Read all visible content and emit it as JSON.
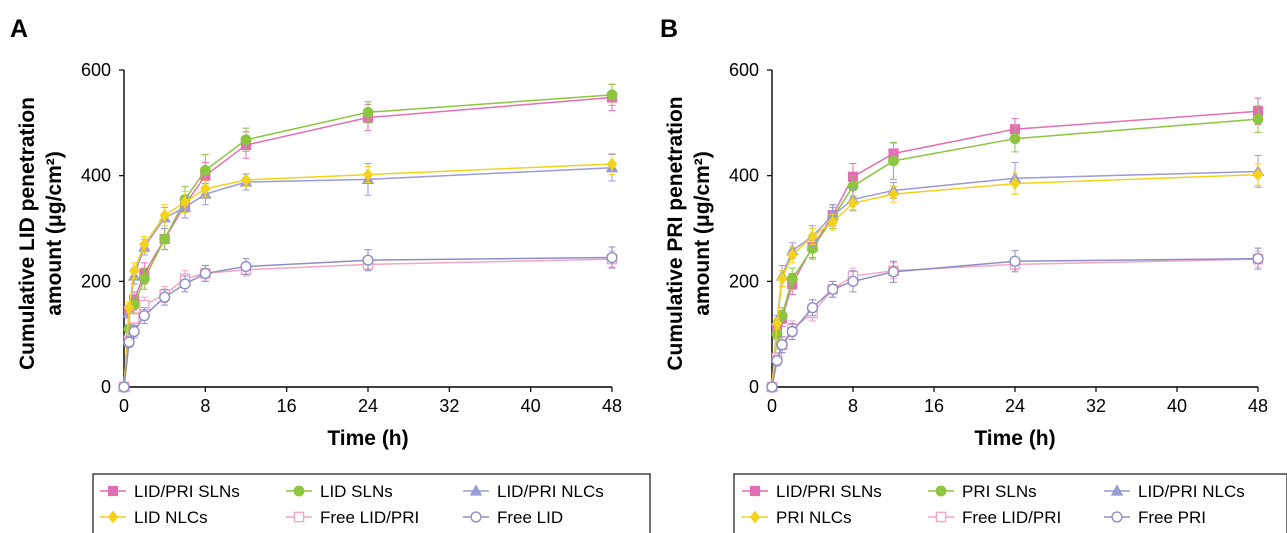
{
  "chart_data": [
    {
      "type": "line",
      "panel": "A",
      "xlabel": "Time (h)",
      "ylabel_line1": "Cumulative LID penetration",
      "ylabel_line2": "amount (μg/cm²)",
      "xlim": [
        0,
        48
      ],
      "ylim": [
        0,
        600
      ],
      "xticks": [
        0,
        8,
        16,
        24,
        32,
        40,
        48
      ],
      "yticks": [
        0,
        200,
        400,
        600
      ],
      "x": [
        0,
        0.5,
        1,
        2,
        4,
        6,
        8,
        12,
        24,
        48
      ],
      "grid": false,
      "legend_position": "bottom",
      "series": [
        {
          "name": "LID/PRI SLNs",
          "color": "#e26fb5",
          "marker": "square-filled",
          "values": [
            0,
            145,
            165,
            215,
            280,
            345,
            400,
            458,
            510,
            548
          ],
          "errors": [
            0,
            10,
            15,
            20,
            20,
            25,
            25,
            25,
            25,
            25
          ]
        },
        {
          "name": "LID SLNs",
          "color": "#8cc63f",
          "marker": "circle-filled",
          "values": [
            0,
            110,
            155,
            205,
            280,
            355,
            410,
            468,
            520,
            553
          ],
          "errors": [
            0,
            8,
            15,
            20,
            20,
            25,
            30,
            22,
            20,
            20
          ]
        },
        {
          "name": "LID/PRI NLCs",
          "color": "#9b9bd6",
          "marker": "triangle-filled",
          "values": [
            0,
            140,
            210,
            265,
            320,
            340,
            365,
            388,
            393,
            415
          ],
          "errors": [
            0,
            10,
            15,
            15,
            20,
            20,
            20,
            15,
            30,
            25
          ]
        },
        {
          "name": "LID NLCs",
          "color": "#f2d21d",
          "marker": "diamond-filled",
          "values": [
            0,
            150,
            220,
            270,
            325,
            350,
            375,
            392,
            402,
            422
          ],
          "errors": [
            0,
            10,
            15,
            15,
            20,
            20,
            15,
            12,
            15,
            20
          ]
        },
        {
          "name": "Free LID/PRI",
          "color": "#f2a6c6",
          "marker": "square-open",
          "values": [
            0,
            88,
            130,
            155,
            175,
            205,
            215,
            222,
            232,
            242
          ],
          "errors": [
            0,
            10,
            15,
            15,
            15,
            15,
            15,
            12,
            10,
            15
          ]
        },
        {
          "name": "Free LID",
          "color": "#8e8ec7",
          "marker": "circle-open",
          "values": [
            0,
            85,
            105,
            135,
            170,
            195,
            215,
            228,
            240,
            245
          ],
          "errors": [
            0,
            10,
            12,
            15,
            15,
            15,
            15,
            15,
            20,
            20
          ]
        }
      ]
    },
    {
      "type": "line",
      "panel": "B",
      "xlabel": "Time (h)",
      "ylabel_line1": "Cumulative PRI penetration",
      "ylabel_line2": "amount (μg/cm²)",
      "xlim": [
        0,
        48
      ],
      "ylim": [
        0,
        600
      ],
      "xticks": [
        0,
        8,
        16,
        24,
        32,
        40,
        48
      ],
      "yticks": [
        0,
        200,
        400,
        600
      ],
      "x": [
        0,
        0.5,
        1,
        2,
        4,
        6,
        8,
        12,
        24,
        48
      ],
      "grid": false,
      "legend_position": "bottom",
      "series": [
        {
          "name": "LID/PRI SLNs",
          "color": "#e26fb5",
          "marker": "square-filled",
          "values": [
            0,
            110,
            130,
            195,
            265,
            325,
            398,
            442,
            488,
            522
          ],
          "errors": [
            0,
            10,
            15,
            20,
            20,
            20,
            25,
            20,
            20,
            25
          ]
        },
        {
          "name": "PRI SLNs",
          "color": "#8cc63f",
          "marker": "circle-filled",
          "values": [
            0,
            100,
            135,
            205,
            262,
            320,
            380,
            428,
            470,
            507
          ],
          "errors": [
            0,
            10,
            15,
            20,
            20,
            20,
            20,
            35,
            25,
            25
          ]
        },
        {
          "name": "LID/PRI NLCs",
          "color": "#9b9bd6",
          "marker": "triangle-filled",
          "values": [
            0,
            125,
            210,
            258,
            285,
            325,
            355,
            372,
            395,
            408
          ],
          "errors": [
            0,
            10,
            20,
            15,
            20,
            20,
            20,
            15,
            30,
            30
          ]
        },
        {
          "name": "PRI NLCs",
          "color": "#f2d21d",
          "marker": "diamond-filled",
          "values": [
            0,
            120,
            205,
            250,
            285,
            312,
            348,
            365,
            385,
            402
          ],
          "errors": [
            0,
            10,
            15,
            15,
            15,
            15,
            15,
            15,
            20,
            20
          ]
        },
        {
          "name": "Free LID/PRI",
          "color": "#f2a6c6",
          "marker": "square-open",
          "values": [
            0,
            55,
            80,
            110,
            140,
            185,
            210,
            220,
            232,
            242
          ],
          "errors": [
            0,
            10,
            15,
            15,
            15,
            15,
            15,
            15,
            10,
            15
          ]
        },
        {
          "name": "Free PRI",
          "color": "#8e8ec7",
          "marker": "circle-open",
          "values": [
            0,
            50,
            80,
            105,
            150,
            185,
            200,
            218,
            238,
            243
          ],
          "errors": [
            0,
            10,
            15,
            15,
            15,
            15,
            20,
            20,
            20,
            20
          ]
        }
      ]
    }
  ]
}
